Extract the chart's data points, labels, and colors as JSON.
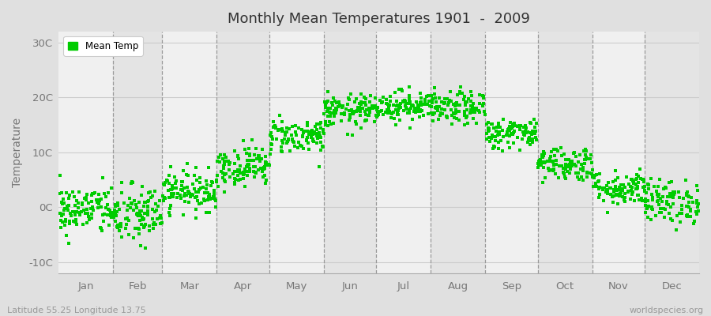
{
  "title": "Monthly Mean Temperatures 1901  -  2009",
  "ylabel": "Temperature",
  "xlabel_labels": [
    "Jan",
    "Feb",
    "Mar",
    "Apr",
    "May",
    "Jun",
    "Jul",
    "Aug",
    "Sep",
    "Oct",
    "Nov",
    "Dec"
  ],
  "ytick_labels": [
    "-10C",
    "0C",
    "10C",
    "20C",
    "30C"
  ],
  "ytick_values": [
    -10,
    0,
    10,
    20,
    30
  ],
  "ylim": [
    -12,
    32
  ],
  "dot_color": "#00cc00",
  "dot_size": 5,
  "figure_bg_color": "#e0e0e0",
  "plot_bg_color": "#f0f0f0",
  "band_color_light": "#f0f0f0",
  "band_color_dark": "#e4e4e4",
  "footer_left": "Latitude 55.25 Longitude 13.75",
  "footer_right": "worldspecies.org",
  "legend_label": "Mean Temp",
  "num_years": 109,
  "monthly_means": [
    -0.5,
    -1.5,
    3.0,
    7.5,
    13.0,
    17.5,
    18.5,
    18.0,
    13.5,
    8.0,
    3.5,
    1.0
  ],
  "monthly_stds": [
    2.3,
    2.8,
    1.8,
    1.8,
    1.6,
    1.5,
    1.4,
    1.5,
    1.4,
    1.6,
    1.6,
    2.0
  ],
  "vline_color": "#999999",
  "grid_color": "#cccccc",
  "tick_label_color": "#777777",
  "spine_color": "#aaaaaa"
}
